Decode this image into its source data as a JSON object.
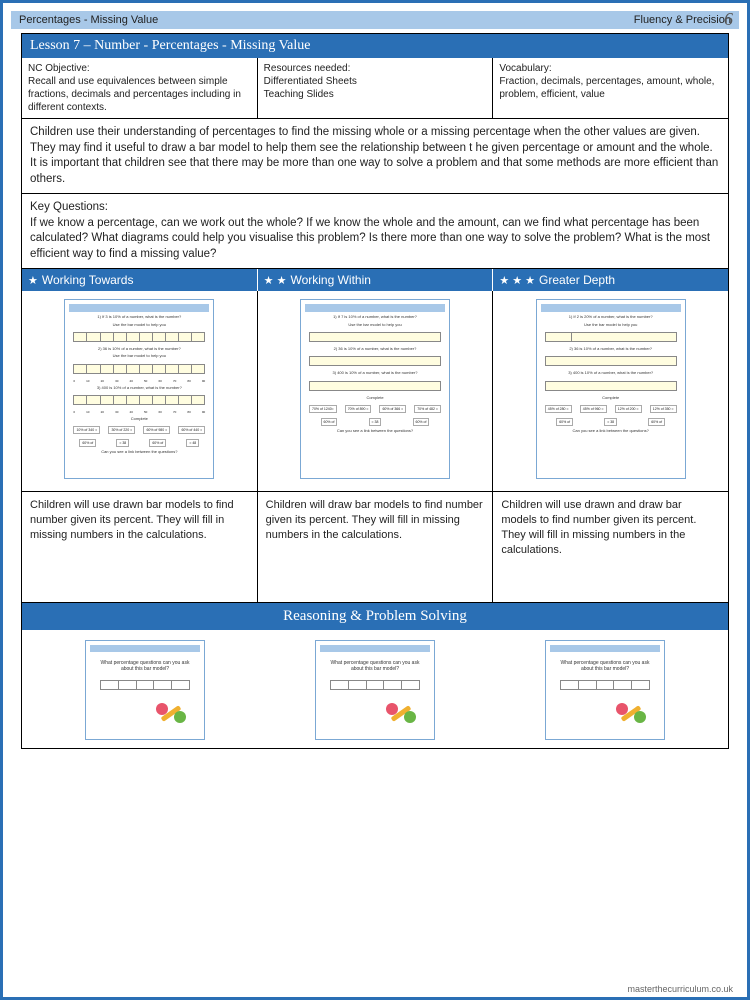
{
  "header": {
    "left": "Percentages - Missing Value",
    "right": "Fluency & Precision",
    "page": "6"
  },
  "lesson_title": "Lesson 7 – Number - Percentages - Missing Value",
  "objectives": {
    "nc_label": "NC Objective:",
    "nc_text": "Recall and use equivalences between simple fractions, decimals and percentages including in different contexts.",
    "resources_label": "Resources needed:",
    "resources_text": "Differentiated Sheets\nTeaching Slides",
    "vocab_label": "Vocabulary:",
    "vocab_text": "Fraction, decimals, percentages, amount, whole, problem, efficient, value"
  },
  "main_para": "Children use their understanding of percentages to find the missing whole or a missing percentage when the other values are given. They may find it useful to draw a bar model to help them see the relationship between t he given percentage or amount and the whole.\nIt is important that children see that there may be more than one way to solve a problem and that some methods are more efficient than others.",
  "key_questions": {
    "label": "Key Questions:",
    "text": "If we know a percentage, can we work out the whole? If we know the whole and the amount, can we find what percentage has been calculated? What diagrams could help you visualise this problem? Is there more than one way to solve the problem? What is the most efficient way to find a missing value?"
  },
  "diff_levels": [
    {
      "stars": 1,
      "label": "Working Towards",
      "desc": "Children will use drawn bar models to find number given its percent. They will fill in missing numbers in the calculations."
    },
    {
      "stars": 2,
      "label": "Working Within",
      "desc": "Children will draw bar models to find number given its percent. They will fill in missing numbers in the calculations."
    },
    {
      "stars": 3,
      "label": "Greater Depth",
      "desc": "Children will use drawn and draw bar models to find number given its percent. They will fill in missing numbers in the calculations."
    }
  ],
  "worksheet_samples": {
    "q1": "1) If 3 is 10% of a number, what is the number?",
    "q1b": "Use the bar model to help you",
    "q2": "2) 36 is 10% of a number, what is the number?",
    "q3": "3) 400 is 10% of a number, what is the number?",
    "complete_label": "Complete",
    "complete_items": [
      "10% of 340 =",
      "30% of 220 =",
      "60% of 980 =",
      "60% of 440 ="
    ],
    "complete_items2": [
      "60% of",
      "= 38",
      "60% of",
      "= 48",
      "60% of",
      "= 96"
    ],
    "bottom": "Can you see a link between the questions?",
    "ticks": [
      "0",
      "10%",
      "20%",
      "30%",
      "40%",
      "50%",
      "60%",
      "70%",
      "80%",
      "90%"
    ]
  },
  "worksheet_samples_b": {
    "q1": "1) If 7 is 10% of a number, what is the number?",
    "complete_items": [
      "70% of 1240=",
      "70% of 890 =",
      "60% of 366 =",
      "70% of 482 ="
    ]
  },
  "worksheet_samples_c": {
    "q1": "1) If 2 is 20% of a number, what is the number?",
    "complete_items": [
      "45% of 280 =",
      "45% of 960 =",
      "12% of 200 =",
      "12% of 350 ="
    ]
  },
  "rps_header": "Reasoning & Problem Solving",
  "rps_thumbs": [
    {
      "q": "What percentage questions can you ask\nabout this bar model?"
    },
    {
      "q": "What percentage questions can you ask\nabout this bar model?"
    },
    {
      "q": "What percentage questions can you ask\nabout this bar model?"
    }
  ],
  "footer": "masterthecurriculum.co.uk",
  "colors": {
    "primary_blue": "#2a6fb5",
    "light_blue": "#a8c8e8",
    "bar_fill": "#fffde0"
  }
}
